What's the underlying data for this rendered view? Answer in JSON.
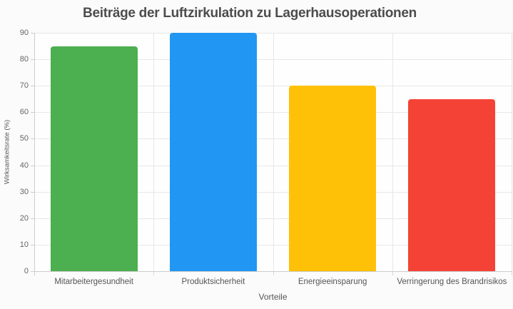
{
  "chart_data": {
    "type": "bar",
    "title": "Beiträge der Luftzirkulation zu Lagerhausoperationen",
    "xlabel": "Vorteile",
    "ylabel": "Wirksamkeitsrate (%)",
    "categories": [
      "Mitarbeitergesundheit",
      "Produktsicherheit",
      "Energieeinsparung",
      "Verringerung des Brandrisikos"
    ],
    "values": [
      85,
      90,
      70,
      65
    ],
    "bar_colors": [
      "#4caf50",
      "#2196f3",
      "#ffc107",
      "#f44336"
    ],
    "ylim": [
      0,
      90
    ],
    "yticks": [
      0,
      10,
      20,
      30,
      40,
      50,
      60,
      70,
      80,
      90
    ],
    "grid": true,
    "legend": false,
    "text_colors": {
      "title": "#4d4d4d",
      "ticks": "#666666",
      "axis_titles": "#555555"
    }
  }
}
